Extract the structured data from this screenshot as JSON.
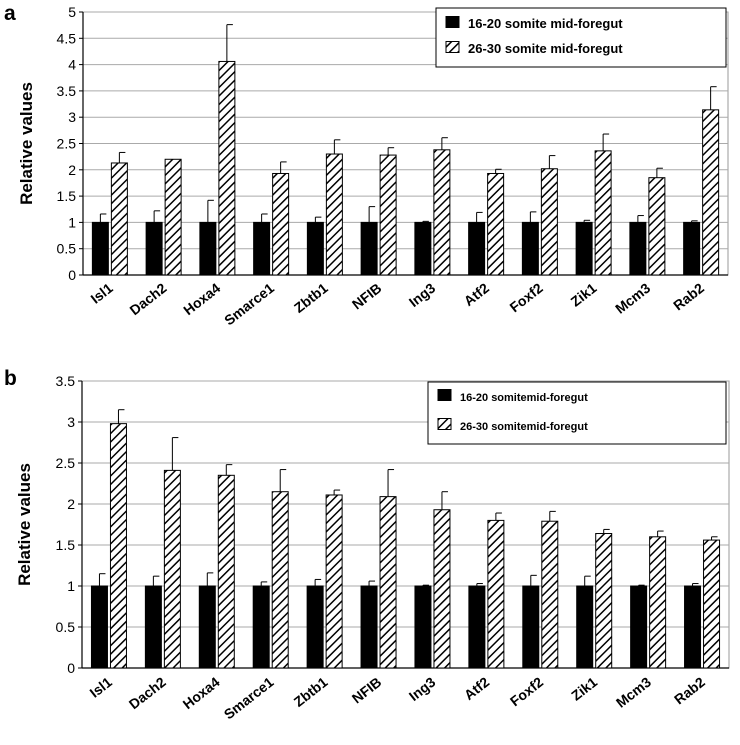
{
  "chart_data": [
    {
      "panel": "a",
      "type": "bar",
      "ylabel": "Relative values",
      "ylim": [
        0,
        5
      ],
      "yticks": [
        "0",
        "0.5",
        "1",
        "1.5",
        "2",
        "2.5",
        "3",
        "3.5",
        "4",
        "4.5",
        "5"
      ],
      "grid": true,
      "legend": "top-right",
      "categories": [
        "Isl1",
        "Dach2",
        "Hoxa4",
        "Smarce1",
        "Zbtb1",
        "NFIB",
        "Ing3",
        "Atf2",
        "Foxf2",
        "Zik1",
        "Mcm3",
        "Rab2"
      ],
      "series": [
        {
          "name": "16-20 somite mid-foregut",
          "fill": "solid",
          "values": [
            1,
            1,
            1,
            1,
            1,
            1,
            1,
            1,
            1,
            1,
            1,
            1
          ],
          "errors": [
            0.16,
            0.22,
            0.42,
            0.16,
            0.1,
            0.3,
            0.02,
            0.19,
            0.2,
            0.04,
            0.13,
            0.03
          ]
        },
        {
          "name": "26-30 somite mid-foregut",
          "fill": "hatched",
          "values": [
            2.13,
            2.2,
            4.06,
            1.93,
            2.3,
            2.28,
            2.38,
            1.93,
            2.02,
            2.36,
            1.85,
            3.14
          ],
          "errors": [
            0.2,
            0.0,
            0.7,
            0.22,
            0.27,
            0.14,
            0.23,
            0.08,
            0.25,
            0.32,
            0.18,
            0.44
          ]
        }
      ]
    },
    {
      "panel": "b",
      "type": "bar",
      "ylabel": "Relative values",
      "ylim": [
        0,
        3.5
      ],
      "yticks": [
        "0",
        "0.5",
        "1",
        "1.5",
        "2",
        "2.5",
        "3",
        "3.5"
      ],
      "grid": true,
      "legend": "top-right",
      "categories": [
        "Isl1",
        "Dach2",
        "Hoxa4",
        "Smarce1",
        "Zbtb1",
        "NFIB",
        "Ing3",
        "Atf2",
        "Foxf2",
        "Zik1",
        "Mcm3",
        "Rab2"
      ],
      "series": [
        {
          "name": "16-20 somitemid-foregut",
          "fill": "solid",
          "values": [
            1,
            1,
            1,
            1,
            1,
            1,
            1,
            1,
            1,
            1,
            1,
            1
          ],
          "errors": [
            0.15,
            0.12,
            0.16,
            0.05,
            0.08,
            0.06,
            0.01,
            0.03,
            0.13,
            0.12,
            0.01,
            0.03
          ]
        },
        {
          "name": "26-30 somitemid-foregut",
          "fill": "hatched",
          "values": [
            2.98,
            2.41,
            2.35,
            2.15,
            2.11,
            2.09,
            1.93,
            1.8,
            1.79,
            1.64,
            1.6,
            1.56
          ],
          "errors": [
            0.17,
            0.4,
            0.13,
            0.27,
            0.06,
            0.33,
            0.22,
            0.09,
            0.12,
            0.05,
            0.07,
            0.04
          ]
        }
      ]
    }
  ]
}
